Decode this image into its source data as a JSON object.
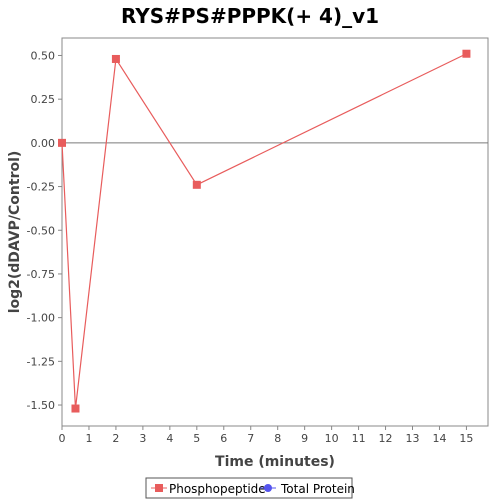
{
  "chart_data": {
    "type": "line",
    "title": "RYS#PS#PPPK(+ 4)_v1",
    "xlabel": "Time (minutes)",
    "ylabel": "log2(dDAVP/Control)",
    "xlim": [
      0,
      15.8
    ],
    "ylim": [
      -1.62,
      0.6
    ],
    "xticks": [
      0,
      1,
      2,
      3,
      4,
      5,
      6,
      7,
      8,
      9,
      10,
      11,
      12,
      13,
      14,
      15
    ],
    "yticks": [
      0.5,
      0.25,
      0.0,
      -0.25,
      -0.5,
      -0.75,
      -1.0,
      -1.25,
      -1.5
    ],
    "ytick_labels": [
      "0.50",
      "0.25",
      "0.00",
      "-0.25",
      "-0.50",
      "-0.75",
      "-1.00",
      "-1.25",
      "-1.50"
    ],
    "zero_line": true,
    "grid": false,
    "legend_position": "bottom",
    "series": [
      {
        "name": "Phosphopeptide",
        "color": "#e85c5c",
        "marker": "square",
        "x": [
          0,
          0.5,
          2,
          5,
          15
        ],
        "y": [
          0.0,
          -1.52,
          0.48,
          -0.24,
          0.51
        ]
      }
    ],
    "legend": [
      {
        "name": "Phosphopeptide",
        "color": "#e85c5c",
        "marker": "square"
      },
      {
        "name": "Total Protein",
        "color": "#5555ee",
        "marker": "circle"
      }
    ]
  }
}
